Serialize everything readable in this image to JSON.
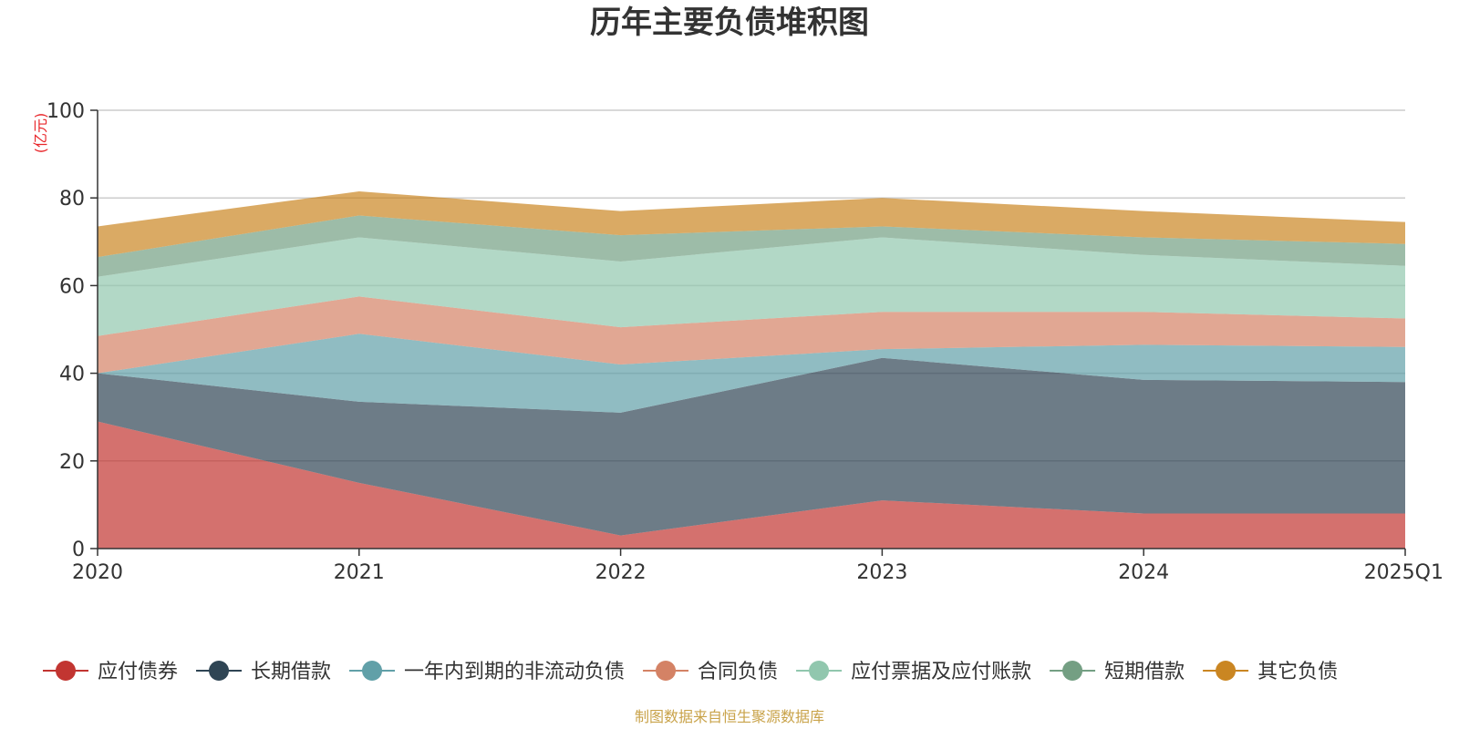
{
  "chart_data": {
    "type": "area",
    "stacked": true,
    "title": "历年主要负债堆积图",
    "unit": "(亿元)",
    "categories": [
      "2020",
      "2021",
      "2022",
      "2023",
      "2024",
      "2025Q1"
    ],
    "ylim": [
      0,
      100
    ],
    "yticks": [
      0,
      20,
      40,
      60,
      80,
      100
    ],
    "grid": true,
    "legend_position": "bottom",
    "series": [
      {
        "name": "应付债券",
        "color": "#c23531",
        "values": [
          29,
          15,
          3,
          11,
          8,
          8
        ]
      },
      {
        "name": "长期借款",
        "color": "#2f4554",
        "values": [
          11,
          18.5,
          28,
          32.5,
          30.5,
          30
        ]
      },
      {
        "name": "一年内到期的非流动负债",
        "color": "#61a0a8",
        "values": [
          0,
          15.5,
          11,
          2,
          8,
          8
        ]
      },
      {
        "name": "合同负债",
        "color": "#d48265",
        "values": [
          8.5,
          8.5,
          8.5,
          8.5,
          7.5,
          6.5
        ]
      },
      {
        "name": "应付票据及应付账款",
        "color": "#91c7ae",
        "values": [
          13.5,
          13.5,
          15,
          17,
          13,
          12
        ]
      },
      {
        "name": "短期借款",
        "color": "#749f83",
        "values": [
          4.5,
          5,
          6,
          2.5,
          4,
          5
        ]
      },
      {
        "name": "其它负债",
        "color": "#ca8622",
        "values": [
          7,
          5.5,
          5.5,
          6.5,
          6,
          5
        ]
      }
    ],
    "source": "制图数据来自恒生聚源数据库"
  }
}
